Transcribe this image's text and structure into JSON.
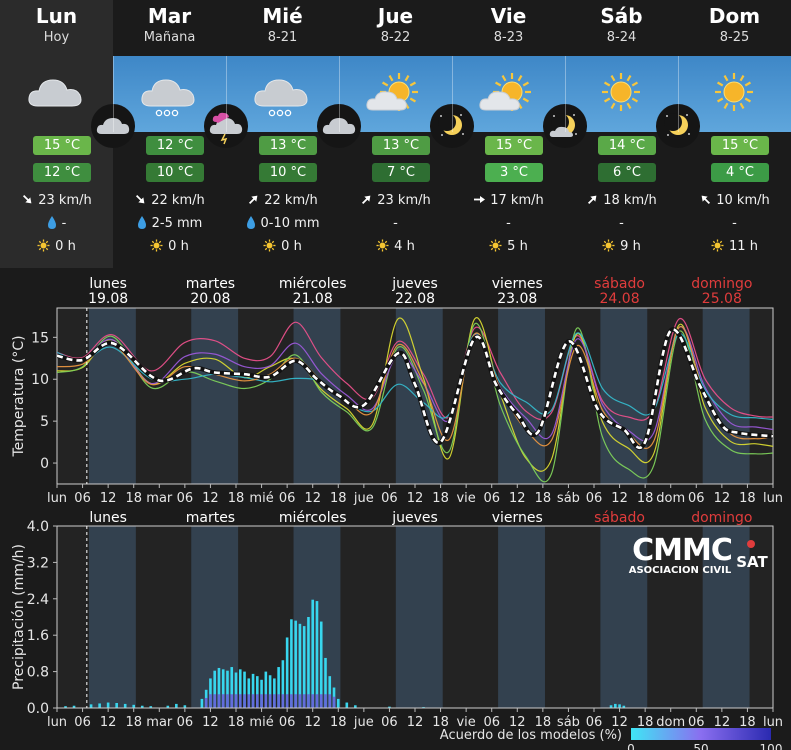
{
  "days": [
    {
      "name": "Lun",
      "sub": "Hoy",
      "day_icon": "cloud-icon",
      "night_icon": "cloud-icon",
      "tmax": "15 °C",
      "tmin": "12 °C",
      "wind_dir": "arrow-down-right-icon",
      "wind": "23 km/h",
      "rain": "-",
      "sun": "0 h",
      "max_color": "#6ab64a",
      "min_color": "#3f8e3f"
    },
    {
      "name": "Mar",
      "sub": "Mañana",
      "day_icon": "cloud-rain-icon",
      "night_icon": "cloud-storm-icon",
      "tmax": "12 °C",
      "tmin": "10 °C",
      "wind_dir": "arrow-down-right-icon",
      "wind": "22 km/h",
      "rain": "2-5 mm",
      "sun": "0 h",
      "max_color": "#3f8e3f",
      "min_color": "#357a35"
    },
    {
      "name": "Mié",
      "sub": "8-21",
      "day_icon": "cloud-rain-icon",
      "night_icon": "cloud-icon",
      "tmax": "13 °C",
      "tmin": "10 °C",
      "wind_dir": "arrow-up-right-icon",
      "wind": "22 km/h",
      "rain": "0-10 mm",
      "sun": "0 h",
      "max_color": "#4f9c44",
      "min_color": "#357a35"
    },
    {
      "name": "Jue",
      "sub": "8-22",
      "day_icon": "sun-cloud-icon",
      "night_icon": "moon-icon",
      "tmax": "13 °C",
      "tmin": "7 °C",
      "wind_dir": "arrow-up-right-icon",
      "wind": "23 km/h",
      "rain": "-",
      "sun": "4 h",
      "max_color": "#4f9c44",
      "min_color": "#2e6e32"
    },
    {
      "name": "Vie",
      "sub": "8-23",
      "day_icon": "sun-cloud-icon",
      "night_icon": "moon-cloud-icon",
      "tmax": "15 °C",
      "tmin": "3 °C",
      "wind_dir": "arrow-right-icon",
      "wind": "17 km/h",
      "rain": "-",
      "sun": "5 h",
      "max_color": "#6ab64a",
      "min_color": "#4caf50"
    },
    {
      "name": "Sáb",
      "sub": "8-24",
      "day_icon": "sun-icon",
      "night_icon": "moon-icon",
      "tmax": "14 °C",
      "tmin": "6 °C",
      "wind_dir": "arrow-up-right-icon",
      "wind": "18 km/h",
      "rain": "-",
      "sun": "9 h",
      "max_color": "#5aa948",
      "min_color": "#2e6e32"
    },
    {
      "name": "Dom",
      "sub": "8-25",
      "day_icon": "sun-icon",
      "night_icon": "",
      "tmax": "15 °C",
      "tmin": "4 °C",
      "wind_dir": "arrow-up-left-icon",
      "wind": "10 km/h",
      "rain": "-",
      "sun": "11 h",
      "max_color": "#6ab64a",
      "min_color": "#3c9b46"
    }
  ],
  "chart_data": [
    {
      "type": "line",
      "ylabel": "Temperatura (°C)",
      "ylim": [
        -2.5,
        18.5
      ],
      "yticks": [
        0,
        5,
        10,
        15
      ],
      "x_unit": "hours since lun 00",
      "xlim": [
        0,
        168
      ],
      "day_labels": [
        {
          "name": "lunes",
          "date": "19.08",
          "color": "#ffffff"
        },
        {
          "name": "martes",
          "date": "20.08",
          "color": "#ffffff"
        },
        {
          "name": "miércoles",
          "date": "21.08",
          "color": "#ffffff"
        },
        {
          "name": "jueves",
          "date": "22.08",
          "color": "#ffffff"
        },
        {
          "name": "viernes",
          "date": "23.08",
          "color": "#ffffff"
        },
        {
          "name": "sábado",
          "date": "24.08",
          "color": "#e03c3c"
        },
        {
          "name": "domingo",
          "date": "25.08",
          "color": "#e03c3c"
        }
      ],
      "xtick_labels": [
        "lun",
        "06",
        "12",
        "18",
        "mar",
        "06",
        "12",
        "18",
        "mié",
        "06",
        "12",
        "18",
        "jue",
        "06",
        "12",
        "18",
        "vie",
        "06",
        "12",
        "18",
        "sáb",
        "06",
        "12",
        "18",
        "dom",
        "06",
        "12",
        "18",
        "lun"
      ],
      "now_hour": 7,
      "mean_series": {
        "name": "",
        "x": [
          0,
          6,
          13,
          22,
          26,
          32,
          37,
          44,
          50,
          56,
          61,
          66,
          72,
          80,
          84,
          90,
          98,
          103,
          108,
          113,
          120,
          127,
          133,
          138,
          144,
          151,
          156,
          160,
          168
        ],
        "y": [
          12.8,
          12.3,
          14.3,
          10.4,
          9.9,
          11.3,
          10.8,
          10.6,
          10.3,
          12.2,
          10.0,
          8.1,
          6.9,
          13.1,
          9.4,
          2.5,
          14.9,
          9.4,
          5.8,
          3.8,
          14.5,
          6.3,
          4.0,
          2.5,
          15.8,
          9.1,
          4.5,
          3.6,
          3.2
        ]
      },
      "model_series": [
        {
          "color": "#e8508a",
          "x": [
            0,
            6,
            13,
            22,
            30,
            37,
            44,
            50,
            56,
            62,
            68,
            74,
            80,
            86,
            92,
            98,
            104,
            110,
            116,
            122,
            128,
            134,
            140,
            146,
            152,
            158,
            164,
            168
          ],
          "y": [
            13.2,
            12.6,
            15.3,
            11.0,
            14.4,
            14.6,
            12.5,
            12.7,
            16.8,
            12.6,
            9.5,
            7.8,
            14.5,
            10.6,
            5.5,
            16.1,
            10.8,
            6.2,
            6.0,
            15.2,
            7.4,
            5.5,
            6.3,
            17.2,
            10.1,
            6.6,
            5.6,
            5.5
          ]
        },
        {
          "color": "#d8d830",
          "x": [
            0,
            6,
            13,
            22,
            30,
            37,
            44,
            50,
            56,
            62,
            68,
            74,
            80,
            86,
            92,
            98,
            104,
            110,
            116,
            122,
            128,
            134,
            140,
            146,
            152,
            158,
            164,
            168
          ],
          "y": [
            11.0,
            11.4,
            14.7,
            9.5,
            11.9,
            12.4,
            10.2,
            11.5,
            12.4,
            8.8,
            6.5,
            4.6,
            17.2,
            10.1,
            0.6,
            17.2,
            8.3,
            0.6,
            0.4,
            15.4,
            4.9,
            1.8,
            1.1,
            16.5,
            6.7,
            2.6,
            2.3,
            2.0
          ]
        },
        {
          "color": "#7dd05a",
          "x": [
            0,
            6,
            13,
            22,
            30,
            37,
            44,
            50,
            56,
            62,
            68,
            74,
            80,
            86,
            92,
            98,
            104,
            110,
            116,
            122,
            128,
            134,
            140,
            146,
            152,
            158,
            164,
            168
          ],
          "y": [
            10.8,
            11.5,
            15.1,
            9.0,
            10.9,
            9.8,
            8.9,
            10.0,
            12.9,
            8.5,
            6.1,
            4.2,
            13.8,
            8.7,
            1.4,
            16.6,
            6.9,
            0.8,
            -1.3,
            16.1,
            3.1,
            -0.7,
            -0.3,
            15.7,
            5.3,
            1.6,
            1.1,
            1.2
          ]
        },
        {
          "color": "#9a58d8",
          "x": [
            0,
            6,
            13,
            22,
            30,
            37,
            44,
            50,
            56,
            62,
            68,
            74,
            80,
            86,
            92,
            98,
            104,
            110,
            116,
            122,
            128,
            134,
            140,
            146,
            152,
            158,
            164,
            168
          ],
          "y": [
            13.0,
            12.2,
            14.7,
            9.5,
            12.7,
            13.0,
            11.5,
            11.6,
            14.3,
            10.7,
            8.1,
            6.5,
            12.9,
            9.5,
            5.1,
            15.3,
            9.0,
            5.4,
            3.4,
            14.8,
            7.0,
            3.9,
            3.6,
            16.2,
            9.1,
            4.8,
            4.3,
            4.0
          ]
        },
        {
          "color": "#35b7c9",
          "x": [
            0,
            6,
            13,
            22,
            30,
            37,
            44,
            50,
            56,
            62,
            68,
            74,
            80,
            86,
            92,
            98,
            104,
            110,
            116,
            122,
            128,
            134,
            140,
            146,
            152,
            158,
            164,
            168
          ],
          "y": [
            13.2,
            12.2,
            13.8,
            10.1,
            10.0,
            10.6,
            10.2,
            9.7,
            10.1,
            9.7,
            7.3,
            6.2,
            9.4,
            7.2,
            5.8,
            15.4,
            9.6,
            7.3,
            6.3,
            15.5,
            8.9,
            6.9,
            6.3,
            15.4,
            8.8,
            5.8,
            5.4,
            5.2
          ]
        },
        {
          "color": "#e89540",
          "x": [
            0,
            6,
            13,
            22,
            30,
            37,
            44,
            50,
            56,
            62,
            68,
            74,
            80,
            86,
            92,
            98,
            104,
            110,
            116,
            122,
            128,
            134,
            140,
            146,
            152,
            158,
            164,
            168
          ],
          "y": [
            11.5,
            11.8,
            14.2,
            9.4,
            11.5,
            10.6,
            9.8,
            10.6,
            12.5,
            9.8,
            7.4,
            6.1,
            14.1,
            9.6,
            2.8,
            15.4,
            8.9,
            4.0,
            2.7,
            14.0,
            6.3,
            3.5,
            2.6,
            16.2,
            8.0,
            3.5,
            2.9,
            3.2
          ]
        }
      ]
    },
    {
      "type": "bar",
      "ylabel": "Precipitación (mm/h)",
      "ylim": [
        0,
        4.0
      ],
      "yticks": [
        "0.0",
        "0.8",
        "1.6",
        "2.4",
        "3.2",
        "4.0"
      ],
      "x_unit": "hours since lun 00",
      "day_labels": [
        "lunes",
        "martes",
        "miércoles",
        "jueves",
        "viernes",
        "sábado",
        "domingo"
      ],
      "day_label_colors": [
        "#ffffff",
        "#ffffff",
        "#ffffff",
        "#ffffff",
        "#ffffff",
        "#e03c3c",
        "#e03c3c"
      ],
      "xtick_labels": [
        "lun",
        "06",
        "12",
        "18",
        "mar",
        "06",
        "12",
        "18",
        "mié",
        "06",
        "12",
        "18",
        "jue",
        "06",
        "12",
        "18",
        "vie",
        "06",
        "12",
        "18",
        "sáb",
        "06",
        "12",
        "18",
        "dom",
        "06",
        "12",
        "18",
        "lun"
      ],
      "x": [
        2,
        4,
        8,
        10,
        12,
        14,
        16,
        18,
        20,
        22,
        26,
        28,
        30,
        34,
        35,
        36,
        37,
        38,
        39,
        40,
        41,
        42,
        43,
        44,
        45,
        46,
        47,
        48,
        49,
        50,
        51,
        52,
        53,
        54,
        55,
        56,
        57,
        58,
        59,
        60,
        61,
        62,
        63,
        64,
        65,
        66,
        68,
        70,
        78,
        86,
        130,
        131,
        132,
        133
      ],
      "values": [
        0.04,
        0.05,
        0.08,
        0.1,
        0.12,
        0.11,
        0.09,
        0.07,
        0.05,
        0.04,
        0.05,
        0.09,
        0.06,
        0.2,
        0.4,
        0.65,
        0.82,
        0.88,
        0.85,
        0.82,
        0.9,
        0.78,
        0.85,
        0.8,
        0.65,
        0.75,
        0.7,
        0.62,
        0.8,
        0.72,
        0.65,
        0.9,
        1.05,
        1.55,
        1.95,
        1.92,
        1.85,
        1.8,
        2.0,
        2.38,
        2.35,
        1.9,
        1.1,
        0.7,
        0.45,
        0.2,
        0.12,
        0.06,
        0.03,
        0.02,
        0.06,
        0.09,
        0.08,
        0.05
      ],
      "agreement_legend": {
        "label": "Acuerdo de los modelos (%)",
        "ticks": [
          "0",
          "50",
          "100"
        ]
      },
      "logo": {
        "text": "CMMC",
        "sub": "ASOCIACION CIVIL",
        "badge": "SAT"
      }
    }
  ]
}
